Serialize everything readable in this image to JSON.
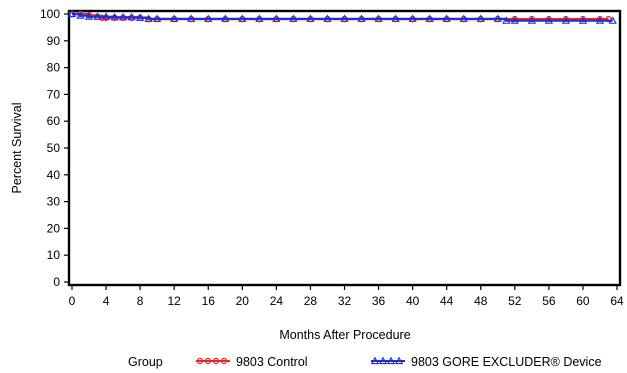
{
  "chart_data": {
    "type": "line",
    "title": "",
    "xlabel": "Months After Procedure",
    "ylabel": "Percent Survival",
    "xlim": [
      0,
      64
    ],
    "ylim": [
      0,
      100
    ],
    "x_ticks": [
      0,
      4,
      8,
      12,
      16,
      20,
      24,
      28,
      32,
      36,
      40,
      44,
      48,
      52,
      56,
      60,
      64
    ],
    "y_ticks": [
      0,
      10,
      20,
      30,
      40,
      50,
      60,
      70,
      80,
      90,
      100
    ],
    "grid": false,
    "legend": {
      "title": "Group",
      "placement": "bottom"
    },
    "series": [
      {
        "name": "9803 Control",
        "color": "#e8262a",
        "marker": "circle",
        "x": [
          0,
          1,
          2,
          3,
          3.5,
          4,
          5,
          6,
          7,
          8,
          9,
          10,
          12,
          14,
          16,
          18,
          20,
          22,
          24,
          26,
          28,
          30,
          32,
          34,
          36,
          38,
          40,
          42,
          44,
          46,
          48,
          50,
          52,
          54,
          56,
          58,
          60,
          62,
          63
        ],
        "y": [
          100,
          100,
          99.5,
          99,
          98.6,
          98.6,
          98.6,
          98.6,
          98.6,
          98.6,
          98.1,
          98.1,
          98.1,
          98.1,
          98.1,
          98.1,
          98.1,
          98.1,
          98.1,
          98.1,
          98.1,
          98.1,
          98.1,
          98.1,
          98.1,
          98.1,
          98.1,
          98.1,
          98.1,
          98.1,
          98.1,
          98.1,
          98.1,
          98.1,
          98.1,
          98.1,
          98.1,
          98.1,
          98.1
        ]
      },
      {
        "name": "9803 GORE EXCLUDER® Device",
        "color": "#1a2ed8",
        "marker": "triangle",
        "x": [
          0,
          1,
          2,
          3,
          4,
          5,
          6,
          7,
          8,
          9,
          10,
          12,
          14,
          16,
          18,
          20,
          22,
          24,
          26,
          28,
          30,
          32,
          34,
          36,
          38,
          40,
          42,
          44,
          46,
          48,
          50,
          51,
          52,
          54,
          56,
          58,
          60,
          62,
          63.5
        ],
        "y": [
          100,
          99.4,
          99,
          99,
          99,
          98.8,
          98.8,
          98.8,
          98.6,
          98.2,
          98.2,
          98.2,
          98.2,
          98.2,
          98.2,
          98.2,
          98.2,
          98.2,
          98.2,
          98.2,
          98.2,
          98.2,
          98.2,
          98.2,
          98.2,
          98.2,
          98.2,
          98.2,
          98.2,
          98.2,
          98.2,
          97.5,
          97.5,
          97.5,
          97.5,
          97.5,
          97.5,
          97.5,
          97.5
        ]
      }
    ]
  }
}
